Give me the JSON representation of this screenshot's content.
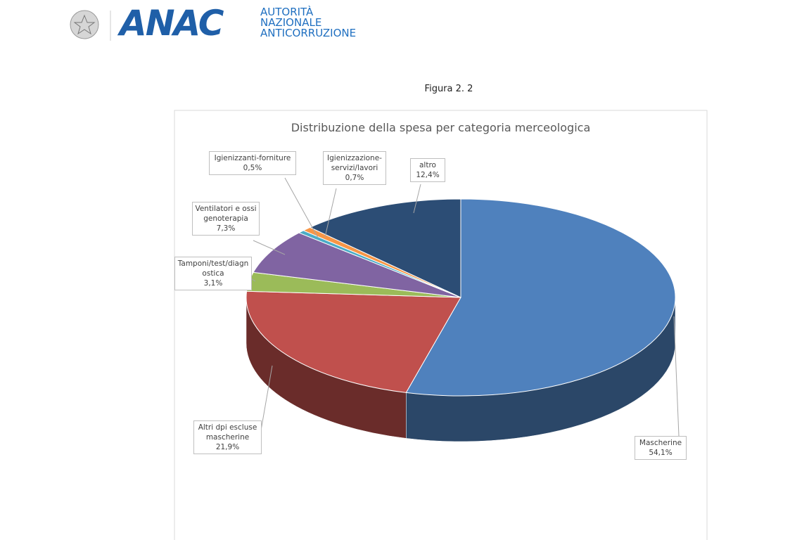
{
  "header": {
    "logo": "ANAC",
    "org_lines": [
      "AUTORITÀ",
      "NAZIONALE",
      "ANTICORRUZIONE"
    ]
  },
  "figure_caption": "Figura 2. 2",
  "chart_data": {
    "type": "pie3d",
    "title": "Distribuzione della spesa per categoria merceologica",
    "categories": [
      "Mascherine",
      "Altri dpi escluse mascherine",
      "Tamponi/test/diagnostica",
      "Ventilatori e ossigenoterapia",
      "Igienizzanti-forniture",
      "Igienizzazione-servizi/lavori",
      "altro"
    ],
    "values": [
      54.1,
      21.9,
      3.1,
      7.3,
      0.5,
      0.7,
      12.4
    ],
    "value_labels": [
      "54,1%",
      "21,9%",
      "3,1%",
      "7,3%",
      "0,5%",
      "0,7%",
      "12,4%"
    ],
    "colors": [
      "#4f81bd",
      "#c0504d",
      "#9bbb59",
      "#8064a2",
      "#4bacc6",
      "#f79646",
      "#2c4d75"
    ]
  }
}
